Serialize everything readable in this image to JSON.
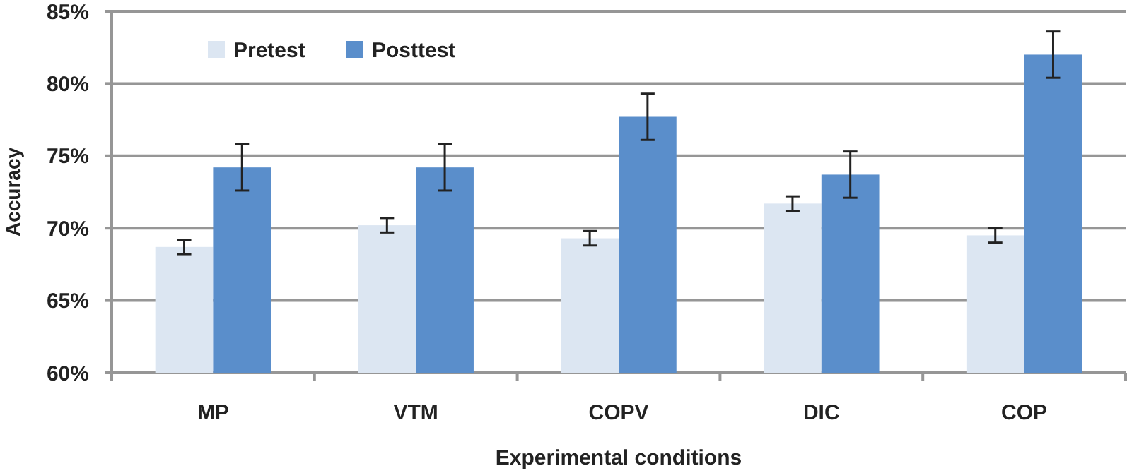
{
  "chart_data": {
    "type": "bar",
    "xlabel": "Experimental conditions",
    "ylabel": "Accuracy",
    "categories": [
      "MP",
      "VTM",
      "COPV",
      "DIC",
      "COP"
    ],
    "series": [
      {
        "name": "Pretest",
        "color": "#dce6f2",
        "values": [
          68.7,
          70.2,
          69.3,
          71.7,
          69.5
        ],
        "errors": [
          0.5,
          0.5,
          0.5,
          0.5,
          0.5
        ]
      },
      {
        "name": "Posttest",
        "color": "#5a8ecb",
        "values": [
          74.2,
          74.2,
          77.7,
          73.7,
          82.0
        ],
        "errors": [
          1.6,
          1.6,
          1.6,
          1.6,
          1.6
        ]
      }
    ],
    "ylim": [
      60,
      85
    ],
    "yticks": [
      {
        "value": 60,
        "label": "60%"
      },
      {
        "value": 65,
        "label": "65%"
      },
      {
        "value": 70,
        "label": "70%"
      },
      {
        "value": 75,
        "label": "75%"
      },
      {
        "value": 80,
        "label": "80%"
      },
      {
        "value": 85,
        "label": "85%"
      }
    ],
    "grid": "y",
    "legend": "top left"
  }
}
